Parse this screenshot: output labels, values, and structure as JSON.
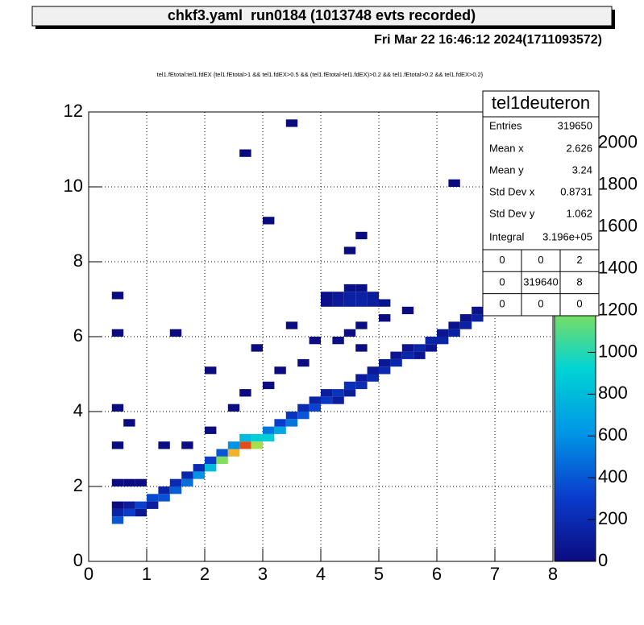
{
  "chart_data": {
    "type": "heatmap2d",
    "title": "chkf3.yaml  run0184 (1013748 evts recorded)",
    "date": "Fri Mar 22 16:46:12 2024(1711093572)",
    "subtitle": "tel1.fEtotal:tel1.fdEX {tel1.fEtotal>1 && tel1.fdEX>0.5 && (tel1.fEtotal-tel1.fdEX)>0.2 && tel1.fEtotal>0.2 && tel1.fdEX>0.2}",
    "xlim": [
      0,
      8
    ],
    "xticks": [
      0,
      1,
      2,
      3,
      4,
      5,
      6,
      7,
      8
    ],
    "ylim": [
      0,
      12
    ],
    "yticks": [
      0,
      2,
      4,
      6,
      8,
      10,
      12
    ],
    "zlim": [
      0,
      2150
    ],
    "zticks": [
      0,
      200,
      400,
      600,
      800,
      1000,
      1200,
      1400,
      1600,
      1800,
      2000
    ],
    "grid": true,
    "palette": [
      "#0b0b80",
      "#0a3ccc",
      "#0096e6",
      "#00d4d4",
      "#8ee050",
      "#f0e040",
      "#f08c20",
      "#d01010"
    ],
    "bin_size": [
      0.2,
      0.2
    ],
    "cells": [
      [
        0.4,
        1.0,
        400
      ],
      [
        0.4,
        1.2,
        150
      ],
      [
        0.6,
        1.2,
        300
      ],
      [
        0.6,
        1.4,
        100
      ],
      [
        0.8,
        1.4,
        320
      ],
      [
        0.8,
        1.2,
        80
      ],
      [
        1.0,
        1.6,
        350
      ],
      [
        1.0,
        1.4,
        120
      ],
      [
        1.2,
        1.6,
        380
      ],
      [
        1.2,
        1.8,
        150
      ],
      [
        1.4,
        1.8,
        420
      ],
      [
        1.4,
        2.0,
        200
      ],
      [
        1.6,
        2.0,
        480
      ],
      [
        1.6,
        2.2,
        180
      ],
      [
        1.8,
        2.2,
        600
      ],
      [
        1.8,
        2.4,
        200
      ],
      [
        2.0,
        2.4,
        800
      ],
      [
        2.0,
        2.6,
        300
      ],
      [
        2.2,
        2.6,
        1200
      ],
      [
        2.2,
        2.8,
        400
      ],
      [
        2.4,
        2.8,
        1700
      ],
      [
        2.4,
        3.0,
        600
      ],
      [
        2.6,
        3.0,
        2000
      ],
      [
        2.6,
        3.2,
        800
      ],
      [
        2.8,
        3.0,
        1300
      ],
      [
        2.8,
        3.2,
        900
      ],
      [
        3.0,
        3.2,
        900
      ],
      [
        3.0,
        3.4,
        500
      ],
      [
        3.2,
        3.4,
        700
      ],
      [
        3.2,
        3.6,
        300
      ],
      [
        3.4,
        3.6,
        500
      ],
      [
        3.4,
        3.8,
        250
      ],
      [
        3.6,
        3.8,
        400
      ],
      [
        3.6,
        4.0,
        200
      ],
      [
        3.8,
        4.0,
        330
      ],
      [
        3.8,
        4.2,
        150
      ],
      [
        4.0,
        4.2,
        280
      ],
      [
        4.0,
        4.4,
        120
      ],
      [
        4.2,
        4.2,
        120
      ],
      [
        4.2,
        4.4,
        250
      ],
      [
        4.4,
        4.4,
        120
      ],
      [
        4.4,
        4.6,
        230
      ],
      [
        4.6,
        4.6,
        210
      ],
      [
        4.6,
        4.8,
        100
      ],
      [
        4.8,
        4.8,
        200
      ],
      [
        4.8,
        5.0,
        90
      ],
      [
        5.0,
        5.0,
        190
      ],
      [
        5.0,
        5.2,
        80
      ],
      [
        5.2,
        5.2,
        180
      ],
      [
        5.2,
        5.4,
        70
      ],
      [
        5.4,
        5.4,
        170
      ],
      [
        5.4,
        5.6,
        60
      ],
      [
        5.6,
        5.4,
        70
      ],
      [
        5.6,
        5.6,
        160
      ],
      [
        5.8,
        5.6,
        60
      ],
      [
        5.8,
        5.8,
        150
      ],
      [
        6.0,
        5.8,
        150
      ],
      [
        6.0,
        6.0,
        60
      ],
      [
        6.2,
        6.0,
        140
      ],
      [
        6.2,
        6.2,
        50
      ],
      [
        6.4,
        6.2,
        140
      ],
      [
        6.4,
        6.4,
        50
      ],
      [
        6.6,
        6.4,
        130
      ],
      [
        6.6,
        6.6,
        50
      ],
      [
        6.8,
        6.6,
        130
      ],
      [
        6.8,
        6.8,
        40
      ],
      [
        7.0,
        6.8,
        120
      ],
      [
        7.0,
        6.6,
        40
      ],
      [
        7.2,
        6.8,
        110
      ],
      [
        7.2,
        7.0,
        40
      ],
      [
        7.4,
        7.0,
        100
      ],
      [
        7.4,
        7.2,
        40
      ],
      [
        7.6,
        7.2,
        90
      ],
      [
        7.6,
        7.4,
        40
      ],
      [
        7.8,
        7.4,
        80
      ],
      [
        7.8,
        7.6,
        30
      ],
      [
        4.0,
        6.8,
        40
      ],
      [
        4.2,
        6.8,
        100
      ],
      [
        4.4,
        6.8,
        140
      ],
      [
        4.6,
        6.8,
        150
      ],
      [
        4.8,
        6.8,
        120
      ],
      [
        5.0,
        6.8,
        50
      ],
      [
        4.2,
        7.0,
        90
      ],
      [
        4.4,
        7.0,
        130
      ],
      [
        4.6,
        7.0,
        140
      ],
      [
        4.8,
        7.0,
        100
      ],
      [
        4.0,
        7.0,
        30
      ],
      [
        4.4,
        7.2,
        40
      ],
      [
        4.6,
        7.2,
        40
      ],
      [
        4.4,
        6.0,
        15
      ],
      [
        4.6,
        6.2,
        12
      ],
      [
        4.2,
        5.8,
        10
      ],
      [
        4.6,
        5.6,
        8
      ],
      [
        0.4,
        1.4,
        10
      ],
      [
        0.4,
        2.0,
        4
      ],
      [
        0.4,
        3.0,
        3
      ],
      [
        0.4,
        4.0,
        3
      ],
      [
        0.4,
        6.0,
        2
      ],
      [
        0.4,
        7.0,
        1
      ],
      [
        0.6,
        2.0,
        6
      ],
      [
        0.6,
        3.6,
        3
      ],
      [
        0.8,
        2.0,
        5
      ],
      [
        1.2,
        3.0,
        3
      ],
      [
        1.6,
        3.0,
        5
      ],
      [
        2.0,
        3.4,
        6
      ],
      [
        2.4,
        4.0,
        5
      ],
      [
        2.6,
        4.4,
        4
      ],
      [
        3.0,
        4.6,
        4
      ],
      [
        3.2,
        5.0,
        3
      ],
      [
        3.6,
        5.2,
        5
      ],
      [
        3.8,
        5.8,
        4
      ],
      [
        3.4,
        6.2,
        2
      ],
      [
        2.8,
        5.6,
        2
      ],
      [
        2.0,
        5.0,
        1
      ],
      [
        1.4,
        6.0,
        1
      ],
      [
        5.0,
        6.4,
        3
      ],
      [
        5.4,
        6.6,
        2
      ],
      [
        3.0,
        9.0,
        1
      ],
      [
        3.4,
        11.6,
        1
      ],
      [
        2.6,
        10.8,
        1
      ],
      [
        4.6,
        8.6,
        1
      ],
      [
        6.2,
        10.0,
        1
      ],
      [
        6.8,
        7.8,
        2
      ],
      [
        7.2,
        8.0,
        1
      ],
      [
        4.4,
        8.2,
        2
      ]
    ],
    "stats": {
      "name": "tel1deuteron",
      "rows": [
        {
          "label": "Entries",
          "value": 319650
        },
        {
          "label": "Mean x",
          "value": 2.626
        },
        {
          "label": "Mean y",
          "value": 3.24
        },
        {
          "label": "Std Dev x",
          "value": 0.8731
        },
        {
          "label": "Std Dev y",
          "value": 1.062
        },
        {
          "label": "Integral",
          "value": "3.196e+05"
        }
      ],
      "grid": [
        [
          0,
          0,
          2
        ],
        [
          0,
          319640,
          8
        ],
        [
          0,
          0,
          0
        ]
      ]
    }
  }
}
